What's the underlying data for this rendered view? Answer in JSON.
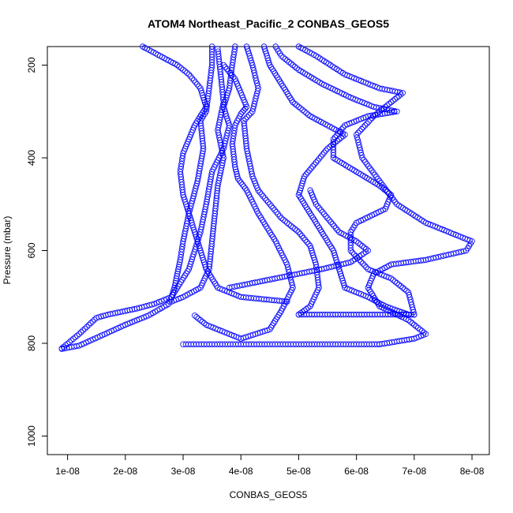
{
  "chart_data": {
    "type": "scatter",
    "title": "ATOM4 Northeast_Pacific_2 CONBAS_GEOS5",
    "xlabel": "CONBAS_GEOS5",
    "ylabel": "Pressure (mbar)",
    "xlim": [
      6.5e-09,
      8.3e-08
    ],
    "ylim": [
      1040,
      160
    ],
    "y_reversed": true,
    "x_ticks": [
      1e-08,
      2e-08,
      3e-08,
      4e-08,
      5e-08,
      6e-08,
      7e-08,
      8e-08
    ],
    "x_tick_labels": [
      "1e-08",
      "2e-08",
      "3e-08",
      "4e-08",
      "5e-08",
      "6e-08",
      "7e-08",
      "8e-08"
    ],
    "y_ticks": [
      200,
      400,
      600,
      800,
      1000
    ],
    "y_tick_labels": [
      "200",
      "400",
      "600",
      "800",
      "1000"
    ],
    "marker": "open-circle",
    "marker_color": "#0000ff",
    "grid": false,
    "legend": "none",
    "series": [
      {
        "profile": [
          [
            3.5e-08,
            160
          ],
          [
            3.5e-08,
            200
          ],
          [
            3.45e-08,
            250
          ],
          [
            3.4e-08,
            300
          ],
          [
            3.3e-08,
            320
          ],
          [
            3.35e-08,
            380
          ],
          [
            3.25e-08,
            450
          ],
          [
            3.1e-08,
            520
          ],
          [
            3e-08,
            580
          ],
          [
            2.95e-08,
            620
          ],
          [
            2.9e-08,
            650
          ],
          [
            2.85e-08,
            680
          ],
          [
            2.8e-08,
            700
          ],
          [
            2.5e-08,
            715
          ],
          [
            2.2e-08,
            725
          ],
          [
            1.7e-08,
            738
          ],
          [
            1.5e-08,
            745
          ],
          [
            1.2e-08,
            780
          ],
          [
            9e-09,
            811
          ]
        ]
      },
      {
        "profile": [
          [
            3.9e-08,
            160
          ],
          [
            3.85e-08,
            200
          ],
          [
            3.8e-08,
            250
          ],
          [
            3.7e-08,
            290
          ],
          [
            3.8e-08,
            330
          ],
          [
            3.7e-08,
            380
          ],
          [
            3.5e-08,
            430
          ],
          [
            3.4e-08,
            500
          ],
          [
            3.3e-08,
            560
          ],
          [
            3.1e-08,
            640
          ],
          [
            2.8e-08,
            700
          ],
          [
            2.75e-08,
            715
          ],
          [
            2.4e-08,
            740
          ],
          [
            2e-08,
            760
          ],
          [
            1.2e-08,
            805
          ],
          [
            9e-09,
            812
          ]
        ]
      },
      {
        "profile": [
          [
            3.6e-08,
            165
          ],
          [
            3.65e-08,
            220
          ],
          [
            3.7e-08,
            280
          ],
          [
            3.6e-08,
            340
          ],
          [
            3.7e-08,
            400
          ],
          [
            3.6e-08,
            460
          ],
          [
            3.55e-08,
            520
          ],
          [
            3.5e-08,
            580
          ],
          [
            3.45e-08,
            640
          ],
          [
            3.3e-08,
            680
          ],
          [
            3e-08,
            700
          ],
          [
            2.8e-08,
            710
          ]
        ]
      },
      {
        "profile": [
          [
            2.3e-08,
            160
          ],
          [
            2.6e-08,
            180
          ],
          [
            2.9e-08,
            200
          ],
          [
            3.1e-08,
            220
          ],
          [
            3.3e-08,
            250
          ],
          [
            3.4e-08,
            290
          ],
          [
            3.2e-08,
            330
          ],
          [
            3.1e-08,
            360
          ],
          [
            3e-08,
            390
          ],
          [
            2.95e-08,
            430
          ],
          [
            3e-08,
            480
          ],
          [
            3.1e-08,
            520
          ],
          [
            3.2e-08,
            560
          ],
          [
            3.3e-08,
            600
          ],
          [
            3.4e-08,
            640
          ],
          [
            3.6e-08,
            680
          ],
          [
            4e-08,
            700
          ],
          [
            4.8e-08,
            710
          ]
        ]
      },
      {
        "profile": [
          [
            4.1e-08,
            160
          ],
          [
            4.2e-08,
            200
          ],
          [
            4.3e-08,
            250
          ],
          [
            4.2e-08,
            300
          ],
          [
            4.05e-08,
            320
          ],
          [
            4.1e-08,
            380
          ],
          [
            4.2e-08,
            440
          ],
          [
            4.3e-08,
            470
          ],
          [
            4.5e-08,
            500
          ],
          [
            4.7e-08,
            530
          ],
          [
            5e-08,
            560
          ],
          [
            5.2e-08,
            590
          ],
          [
            5.3e-08,
            630
          ],
          [
            5.35e-08,
            680
          ],
          [
            5.2e-08,
            720
          ],
          [
            5e-08,
            738
          ]
        ]
      },
      {
        "profile": [
          [
            4.4e-08,
            160
          ],
          [
            4.5e-08,
            200
          ],
          [
            4.7e-08,
            240
          ],
          [
            4.9e-08,
            280
          ],
          [
            5.2e-08,
            310
          ],
          [
            5.5e-08,
            330
          ],
          [
            5.8e-08,
            350
          ],
          [
            5.5e-08,
            380
          ],
          [
            5.3e-08,
            410
          ],
          [
            5.1e-08,
            440
          ],
          [
            5e-08,
            480
          ],
          [
            5.2e-08,
            520
          ],
          [
            5.4e-08,
            560
          ],
          [
            5.6e-08,
            600
          ],
          [
            5.7e-08,
            640
          ],
          [
            5.8e-08,
            680
          ],
          [
            6.2e-08,
            700
          ],
          [
            6.5e-08,
            720
          ],
          [
            6.9e-08,
            738
          ],
          [
            7e-08,
            738
          ]
        ]
      },
      {
        "profile": [
          [
            4.6e-08,
            160
          ],
          [
            4.7e-08,
            180
          ],
          [
            5e-08,
            210
          ],
          [
            5.4e-08,
            240
          ],
          [
            5.9e-08,
            270
          ],
          [
            6.3e-08,
            290
          ],
          [
            6.7e-08,
            300
          ],
          [
            6.2e-08,
            310
          ],
          [
            5.8e-08,
            330
          ],
          [
            5.6e-08,
            360
          ],
          [
            5.6e-08,
            400
          ],
          [
            6e-08,
            430
          ],
          [
            6.4e-08,
            460
          ],
          [
            6.6e-08,
            480
          ],
          [
            6.5e-08,
            510
          ],
          [
            6e-08,
            540
          ],
          [
            5.9e-08,
            560
          ],
          [
            5.9e-08,
            600
          ],
          [
            6.2e-08,
            640
          ],
          [
            6.6e-08,
            660
          ],
          [
            6.9e-08,
            690
          ],
          [
            7e-08,
            738
          ]
        ]
      },
      {
        "profile": [
          [
            5e-08,
            160
          ],
          [
            5.3e-08,
            180
          ],
          [
            5.8e-08,
            220
          ],
          [
            6.4e-08,
            250
          ],
          [
            6.8e-08,
            260
          ],
          [
            6.6e-08,
            280
          ],
          [
            6.3e-08,
            310
          ],
          [
            6e-08,
            350
          ],
          [
            6.1e-08,
            400
          ],
          [
            6.4e-08,
            450
          ],
          [
            6.7e-08,
            500
          ],
          [
            7.2e-08,
            540
          ],
          [
            7.6e-08,
            560
          ],
          [
            8e-08,
            580
          ],
          [
            7.9e-08,
            600
          ],
          [
            7.2e-08,
            620
          ],
          [
            6.6e-08,
            630
          ],
          [
            6.3e-08,
            650
          ],
          [
            6.2e-08,
            680
          ],
          [
            6.4e-08,
            720
          ],
          [
            6.9e-08,
            750
          ],
          [
            7.2e-08,
            780
          ],
          [
            7e-08,
            790
          ],
          [
            6.4e-08,
            802
          ]
        ]
      },
      {
        "profile": [
          [
            3e-08,
            802
          ],
          [
            3.5e-08,
            802
          ],
          [
            4e-08,
            802
          ],
          [
            4.5e-08,
            802
          ],
          [
            5e-08,
            802
          ],
          [
            5.5e-08,
            802
          ],
          [
            6e-08,
            802
          ],
          [
            6.4e-08,
            802
          ]
        ]
      },
      {
        "profile": [
          [
            5e-08,
            738
          ],
          [
            5.5e-08,
            738
          ],
          [
            6e-08,
            738
          ],
          [
            6.5e-08,
            738
          ],
          [
            7e-08,
            738
          ]
        ]
      },
      {
        "profile": [
          [
            3.8e-08,
            680
          ],
          [
            4.2e-08,
            670
          ],
          [
            4.8e-08,
            655
          ],
          [
            5.4e-08,
            640
          ],
          [
            5.9e-08,
            625
          ],
          [
            6.2e-08,
            600
          ],
          [
            6e-08,
            580
          ],
          [
            5.7e-08,
            560
          ],
          [
            5.5e-08,
            530
          ],
          [
            5.3e-08,
            500
          ],
          [
            5.2e-08,
            470
          ]
        ]
      },
      {
        "profile": [
          [
            3.7e-08,
            200
          ],
          [
            3.9e-08,
            230
          ],
          [
            4e-08,
            260
          ],
          [
            4.1e-08,
            290
          ],
          [
            4e-08,
            305
          ],
          [
            3.9e-08,
            330
          ],
          [
            3.85e-08,
            370
          ],
          [
            3.9e-08,
            420
          ],
          [
            3.95e-08,
            445
          ],
          [
            4.1e-08,
            470
          ],
          [
            4.3e-08,
            520
          ],
          [
            4.6e-08,
            580
          ],
          [
            4.8e-08,
            630
          ],
          [
            4.9e-08,
            680
          ],
          [
            4.7e-08,
            730
          ],
          [
            4.5e-08,
            770
          ],
          [
            4e-08,
            790
          ],
          [
            3.4e-08,
            760
          ],
          [
            3.2e-08,
            740
          ]
        ]
      }
    ]
  }
}
